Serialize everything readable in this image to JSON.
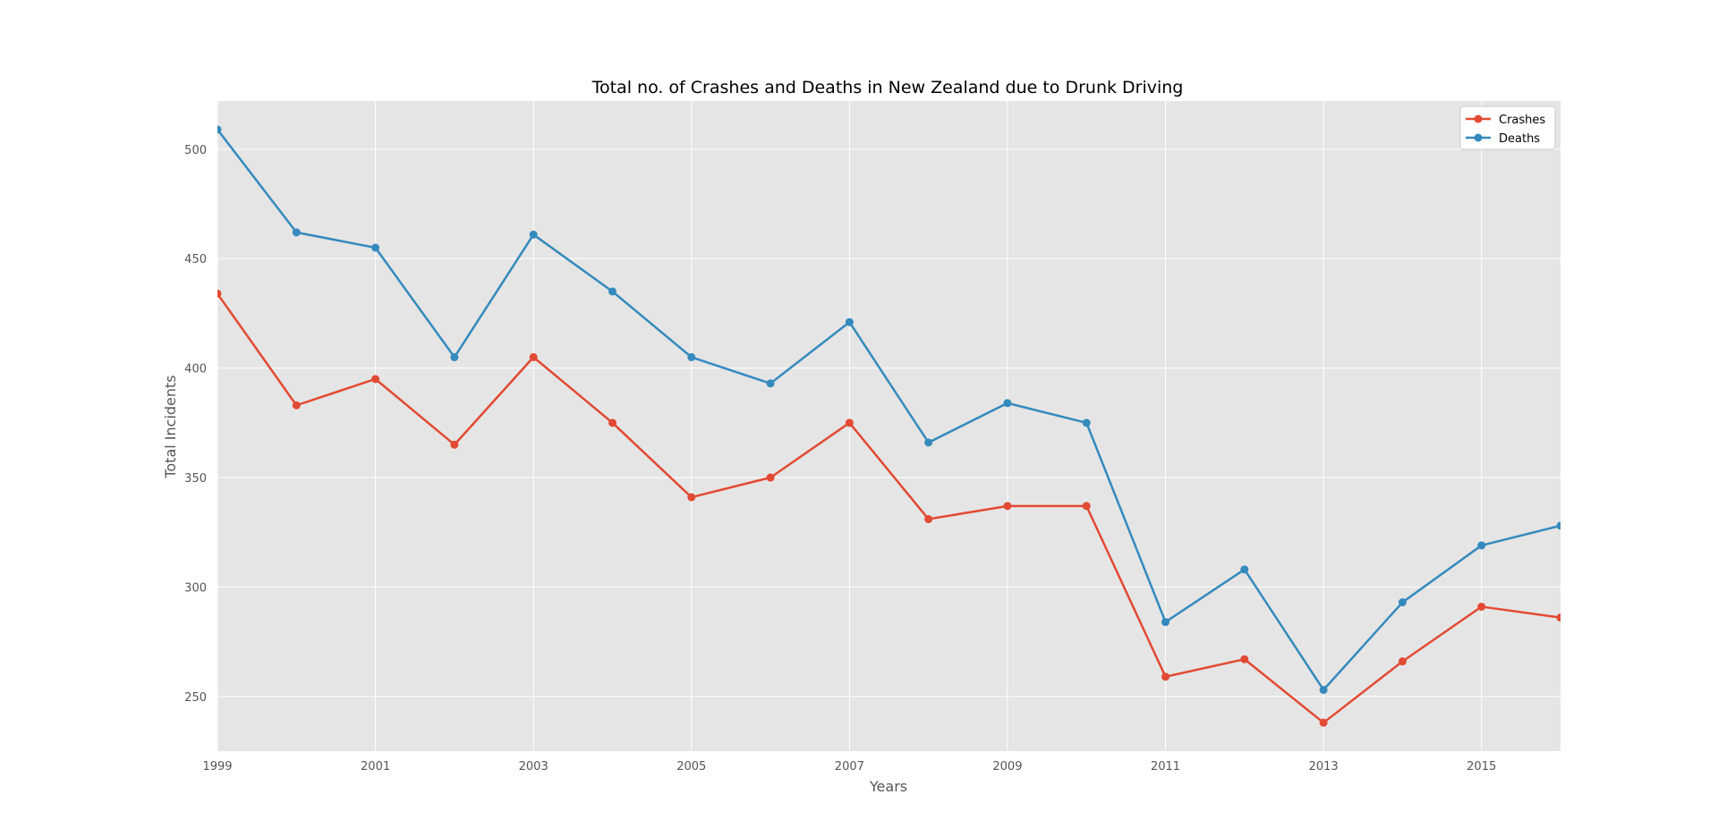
{
  "chart_data": {
    "type": "line",
    "title": "Total no. of Crashes and Deaths in New Zealand due to Drunk Driving",
    "xlabel": "Years",
    "ylabel": "Total Incidents",
    "x": [
      1999,
      2000,
      2001,
      2002,
      2003,
      2004,
      2005,
      2006,
      2007,
      2008,
      2009,
      2010,
      2011,
      2012,
      2013,
      2014,
      2015,
      2016
    ],
    "x_ticks": [
      "1999",
      "2001",
      "2003",
      "2005",
      "2007",
      "2009",
      "2011",
      "2013",
      "2015"
    ],
    "y_ticks": [
      "250",
      "300",
      "350",
      "400",
      "450",
      "500"
    ],
    "xlim": [
      1999,
      2016
    ],
    "ylim": [
      225,
      522
    ],
    "grid": true,
    "legend_position": "top-right",
    "plot_background": "#e5e5e5",
    "series": [
      {
        "name": "Crashes",
        "color": "#e24a33",
        "values": [
          434,
          383,
          395,
          365,
          405,
          375,
          341,
          350,
          375,
          331,
          337,
          337,
          259,
          267,
          238,
          266,
          291,
          286
        ]
      },
      {
        "name": "Deaths",
        "color": "#348abd",
        "values": [
          509,
          462,
          455,
          405,
          461,
          435,
          405,
          393,
          421,
          366,
          384,
          375,
          284,
          308,
          253,
          293,
          319,
          328
        ]
      }
    ]
  }
}
